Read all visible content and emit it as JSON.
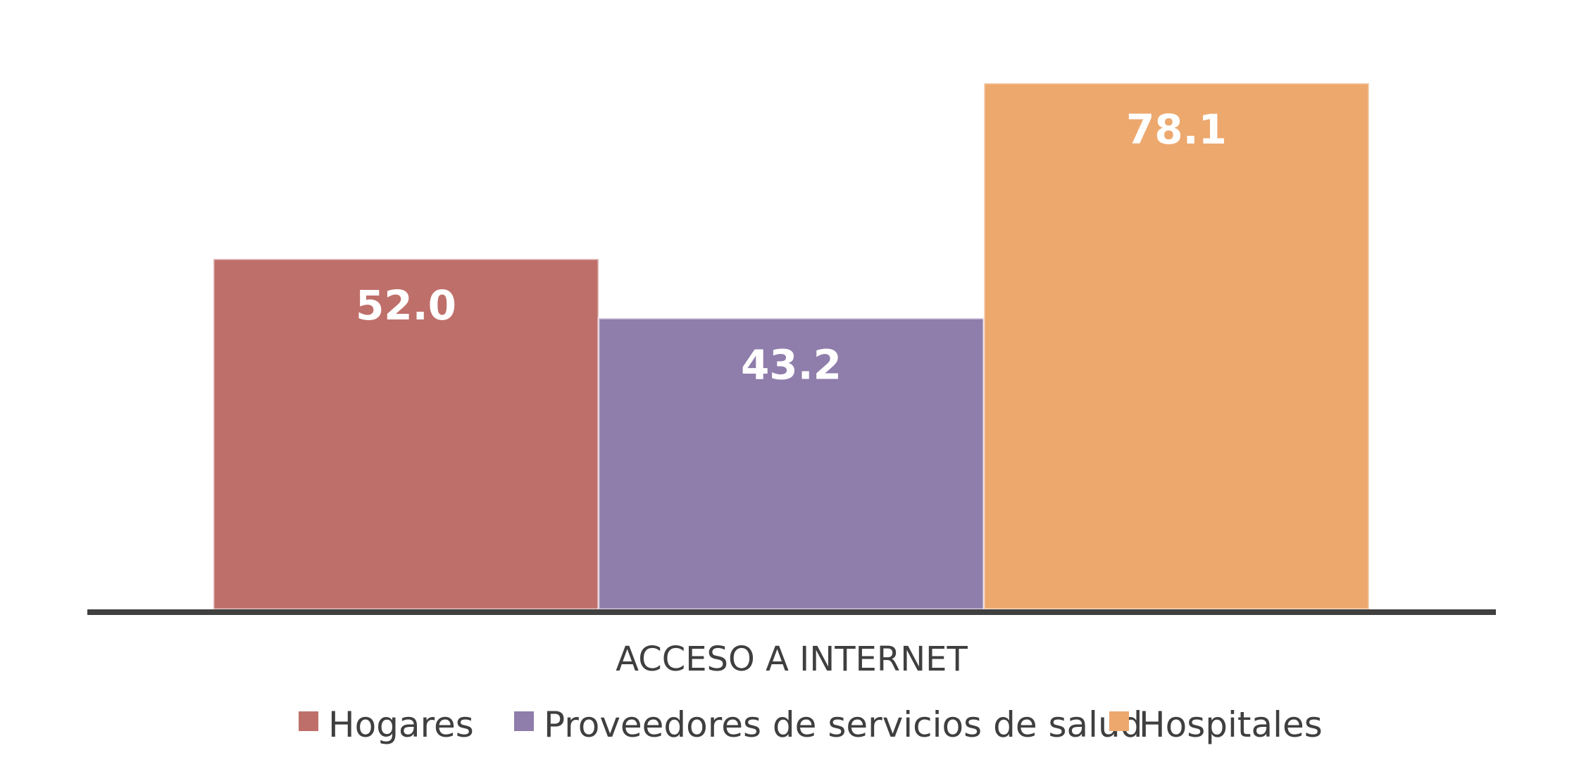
{
  "chart_data": {
    "type": "bar",
    "title": "",
    "xlabel": "",
    "ylabel": "",
    "categories": [
      "ACCESO A INTERNET"
    ],
    "ylim": [
      0,
      85
    ],
    "grid": false,
    "legend_position": "bottom",
    "series": [
      {
        "name": "Hogares",
        "values": [
          52.0
        ],
        "value_labels": [
          "52.0"
        ],
        "color": "#bf6f6a"
      },
      {
        "name": "Proveedores de servicios de salud",
        "values": [
          43.2
        ],
        "value_labels": [
          "43.2"
        ],
        "color": "#8f7dab"
      },
      {
        "name": "Hospitales",
        "values": [
          78.1
        ],
        "value_labels": [
          "78.1"
        ],
        "color": "#eda86e"
      }
    ],
    "axis_color": "#404040"
  }
}
